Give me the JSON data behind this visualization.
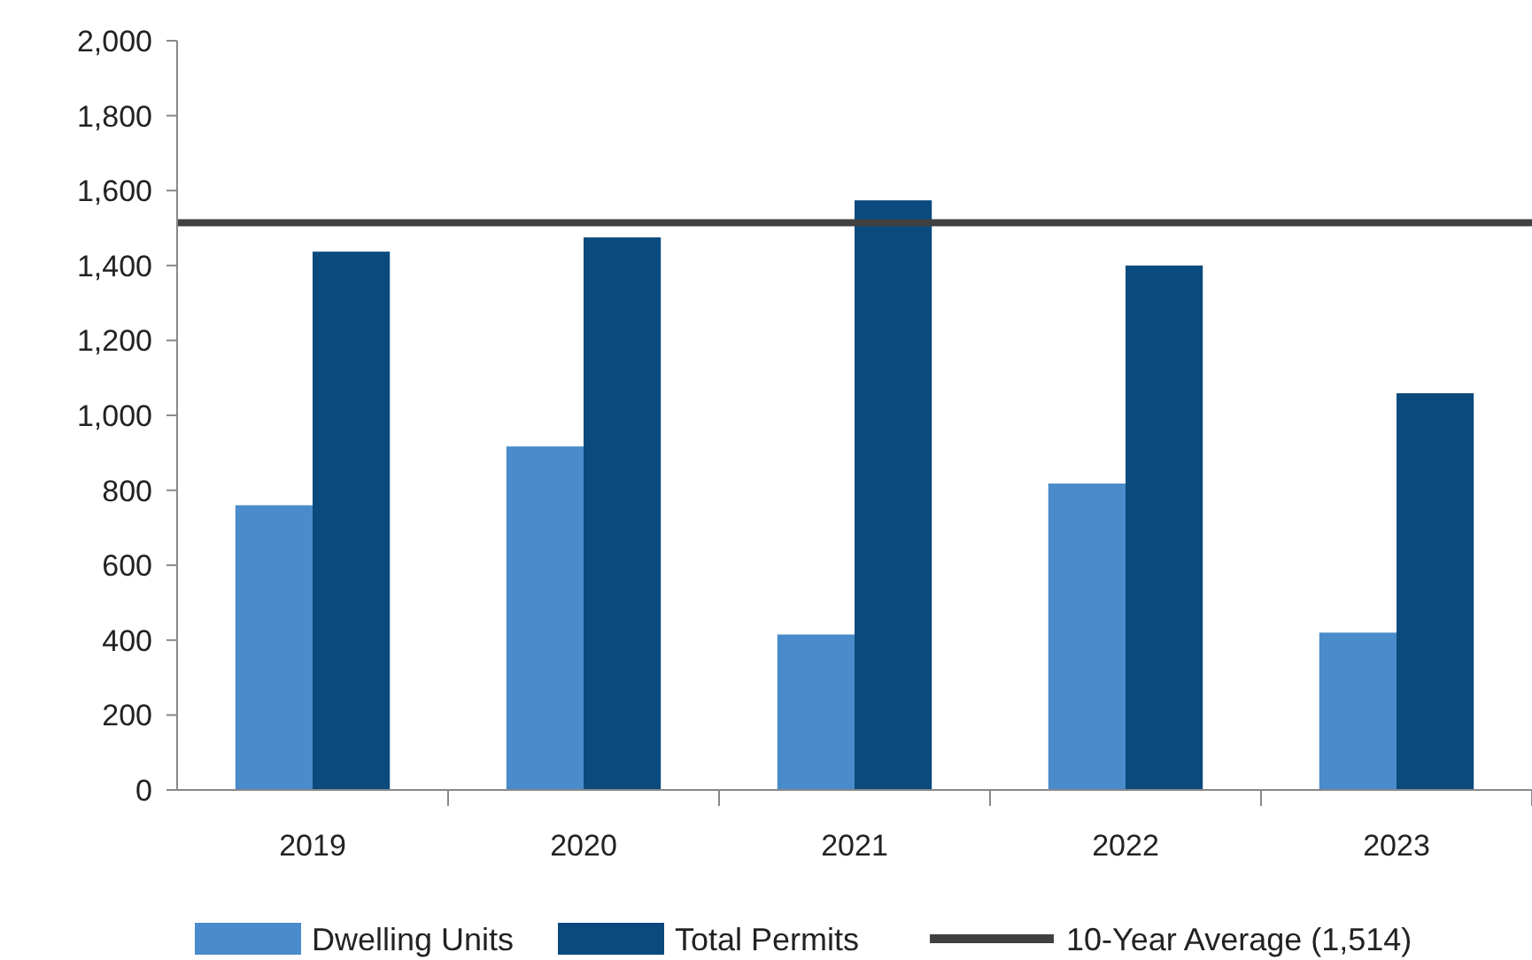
{
  "chart_data": {
    "type": "bar",
    "categories": [
      "2019",
      "2020",
      "2021",
      "2022",
      "2023"
    ],
    "series": [
      {
        "name": "Dwelling Units",
        "color": "#4a8bcb",
        "values": [
          760,
          917,
          415,
          818,
          420
        ]
      },
      {
        "name": "Total Permits",
        "color": "#0b4a7d",
        "values": [
          1437,
          1475,
          1574,
          1400,
          1059
        ]
      }
    ],
    "ylim": [
      0,
      2000
    ],
    "yticks": [
      {
        "value": 0,
        "label": "0"
      },
      {
        "value": 200,
        "label": "200"
      },
      {
        "value": 400,
        "label": "400"
      },
      {
        "value": 600,
        "label": "600"
      },
      {
        "value": 800,
        "label": "800"
      },
      {
        "value": 1000,
        "label": "1,000"
      },
      {
        "value": 1200,
        "label": "1,200"
      },
      {
        "value": 1400,
        "label": "1,400"
      },
      {
        "value": 1600,
        "label": "1,600"
      },
      {
        "value": 1800,
        "label": "1,800"
      },
      {
        "value": 2000,
        "label": "2,000"
      }
    ],
    "ref_lines": [
      {
        "axis": "y",
        "value": 1514,
        "label": "10-Year Average (1,514)",
        "color": "#404040"
      }
    ],
    "legend": "bottom",
    "grid": false
  }
}
